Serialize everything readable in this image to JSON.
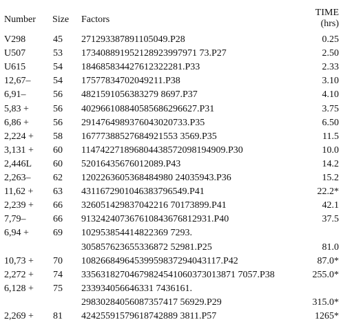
{
  "headers": {
    "number": "Number",
    "size": "Size",
    "factors": "Factors",
    "time_line1": "TIME",
    "time_line2": "(hrs)"
  },
  "rows": [
    {
      "number": "V298",
      "size": "45",
      "factors": "271293387891105049.P28",
      "time": "0.25"
    },
    {
      "number": "U507",
      "size": "53",
      "factors": "173408891952128923997971 73.P27",
      "time": "2.50"
    },
    {
      "number": "U615",
      "size": "54",
      "factors": "184685834427612322281.P33",
      "time": "2.33"
    },
    {
      "number": "12,67–",
      "size": "54",
      "factors": "17577834702049211.P38",
      "time": "3.10"
    },
    {
      "number": "6,91–",
      "size": "56",
      "factors": "4821591056383279 8697.P37",
      "time": "4.10"
    },
    {
      "number": "5,83 +",
      "size": "56",
      "factors": "402966108840585686296627.P31",
      "time": "3.75"
    },
    {
      "number": "6,86 +",
      "size": "56",
      "factors": "2914764989376043020733.P35",
      "time": "6.50"
    },
    {
      "number": "2,224 +",
      "size": "58",
      "factors": "16777388527684921553 3569.P35",
      "time": "11.5"
    },
    {
      "number": "3,131 +",
      "size": "60",
      "factors": "114742271896804438572098194909.P30",
      "time": "10.0"
    },
    {
      "number": "2,446L",
      "size": "60",
      "factors": "52016435676012089.P43",
      "time": "14.2"
    },
    {
      "number": "2,263–",
      "size": "62",
      "factors": "1202263605368484980 24035943.P36",
      "time": "15.2"
    },
    {
      "number": "11,62 +",
      "size": "63",
      "factors": "4311672901046383796549.P41",
      "time": "22.2*"
    },
    {
      "number": "2,239 +",
      "size": "66",
      "factors": "326051429837042216 70173899.P41",
      "time": "42.1"
    },
    {
      "number": "7,79–",
      "size": "66",
      "factors": "913242407367610843676812931.P40",
      "time": "37.5"
    },
    {
      "number": "6,94 +",
      "size": "69",
      "factors": "102953854414822369 7293.",
      "time": ""
    },
    {
      "number": "",
      "size": "",
      "factors": "305857623655336872 52981.P25",
      "time": "81.0"
    },
    {
      "number": "10,73 +",
      "size": "70",
      "factors": "10826684964539959837294043117.P42",
      "time": "87.0*"
    },
    {
      "number": "2,272 +",
      "size": "74",
      "factors": "33563182704679824541060373013871 7057.P38",
      "time": "255.0*"
    },
    {
      "number": "6,128 +",
      "size": "75",
      "factors": "233934056646331 7436161.",
      "time": ""
    },
    {
      "number": "",
      "size": "",
      "factors": "29830284056087357417 56929.P29",
      "time": "315.0*"
    },
    {
      "number": "2,269 +",
      "size": "81",
      "factors": "42425591579618742889 3811.P57",
      "time": "1265*"
    }
  ]
}
